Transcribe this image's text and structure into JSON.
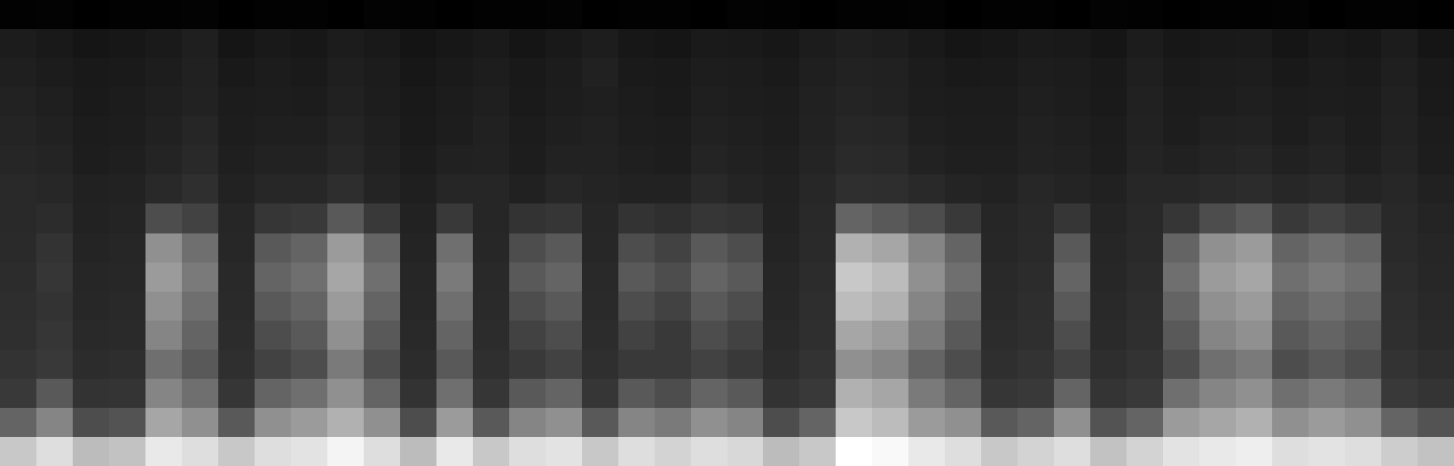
{
  "chart_data": {
    "type": "heatmap",
    "tick_labels": false,
    "z": [
      [
        6,
        7,
        5,
        6,
        6,
        7,
        5,
        6,
        6,
        5,
        7,
        6,
        5,
        6,
        6,
        7,
        5,
        6,
        6,
        5,
        7,
        6,
        5,
        6,
        6,
        7,
        5,
        6,
        6,
        5,
        7,
        6,
        5,
        6,
        6,
        7,
        5,
        6,
        6,
        5
      ],
      [
        22,
        20,
        18,
        19,
        21,
        24,
        18,
        20,
        19,
        22,
        20,
        17,
        19,
        21,
        18,
        20,
        23,
        19,
        18,
        21,
        20,
        19,
        22,
        24,
        23,
        20,
        18,
        19,
        21,
        20,
        18,
        22,
        19,
        20,
        21,
        18,
        20,
        19,
        22,
        18
      ],
      [
        24,
        22,
        20,
        21,
        23,
        25,
        20,
        22,
        21,
        24,
        22,
        19,
        21,
        23,
        20,
        22,
        25,
        21,
        20,
        23,
        22,
        21,
        24,
        26,
        25,
        22,
        20,
        21,
        23,
        22,
        20,
        24,
        21,
        22,
        23,
        20,
        22,
        21,
        24,
        20
      ],
      [
        26,
        24,
        21,
        22,
        24,
        26,
        22,
        23,
        22,
        25,
        23,
        20,
        22,
        24,
        21,
        23,
        24,
        22,
        21,
        24,
        23,
        22,
        25,
        27,
        26,
        23,
        22,
        22,
        24,
        23,
        21,
        25,
        22,
        23,
        24,
        22,
        23,
        22,
        25,
        21
      ],
      [
        27,
        25,
        22,
        23,
        25,
        28,
        23,
        24,
        24,
        27,
        24,
        21,
        23,
        25,
        22,
        24,
        25,
        23,
        22,
        25,
        24,
        23,
        26,
        29,
        28,
        24,
        23,
        23,
        25,
        24,
        22,
        26,
        23,
        25,
        26,
        23,
        25,
        23,
        26,
        22
      ],
      [
        28,
        27,
        23,
        24,
        27,
        30,
        24,
        26,
        26,
        29,
        25,
        22,
        25,
        26,
        23,
        26,
        26,
        24,
        23,
        27,
        25,
        24,
        27,
        31,
        30,
        26,
        24,
        24,
        26,
        25,
        23,
        27,
        25,
        27,
        28,
        25,
        27,
        24,
        27,
        23
      ],
      [
        30,
        29,
        25,
        26,
        30,
        34,
        26,
        29,
        29,
        33,
        27,
        24,
        28,
        28,
        25,
        29,
        27,
        26,
        26,
        30,
        27,
        25,
        29,
        34,
        33,
        30,
        27,
        26,
        29,
        27,
        25,
        29,
        29,
        31,
        32,
        29,
        31,
        27,
        29,
        25
      ],
      [
        30,
        32,
        26,
        27,
        44,
        42,
        28,
        38,
        40,
        46,
        40,
        26,
        40,
        28,
        36,
        38,
        28,
        36,
        34,
        38,
        36,
        26,
        30,
        48,
        46,
        44,
        40,
        28,
        30,
        38,
        27,
        30,
        38,
        44,
        46,
        40,
        42,
        40,
        30,
        27
      ],
      [
        31,
        36,
        27,
        28,
        56,
        50,
        29,
        46,
        48,
        58,
        48,
        27,
        50,
        29,
        44,
        46,
        29,
        44,
        42,
        46,
        44,
        27,
        31,
        62,
        60,
        54,
        48,
        29,
        31,
        46,
        28,
        31,
        48,
        56,
        58,
        48,
        50,
        48,
        31,
        28
      ],
      [
        32,
        38,
        28,
        29,
        58,
        52,
        30,
        48,
        50,
        60,
        50,
        28,
        52,
        30,
        46,
        48,
        30,
        46,
        44,
        48,
        46,
        28,
        32,
        66,
        64,
        56,
        50,
        30,
        32,
        48,
        29,
        32,
        50,
        58,
        60,
        50,
        52,
        50,
        32,
        29
      ],
      [
        33,
        36,
        29,
        30,
        56,
        50,
        31,
        46,
        48,
        58,
        48,
        29,
        50,
        31,
        44,
        46,
        31,
        44,
        42,
        46,
        44,
        29,
        33,
        64,
        62,
        54,
        48,
        31,
        33,
        46,
        30,
        33,
        48,
        56,
        58,
        48,
        50,
        48,
        33,
        30
      ],
      [
        34,
        38,
        30,
        31,
        54,
        48,
        32,
        44,
        46,
        56,
        46,
        30,
        48,
        32,
        42,
        44,
        32,
        42,
        40,
        44,
        42,
        30,
        34,
        60,
        58,
        52,
        46,
        32,
        34,
        44,
        31,
        34,
        46,
        54,
        56,
        46,
        48,
        46,
        34,
        31
      ],
      [
        36,
        40,
        32,
        33,
        50,
        46,
        34,
        42,
        44,
        52,
        44,
        32,
        46,
        34,
        40,
        42,
        34,
        40,
        40,
        42,
        40,
        32,
        36,
        56,
        54,
        48,
        44,
        34,
        36,
        42,
        33,
        36,
        44,
        50,
        52,
        44,
        46,
        44,
        36,
        33
      ],
      [
        40,
        46,
        36,
        37,
        54,
        50,
        38,
        48,
        50,
        56,
        48,
        36,
        50,
        38,
        46,
        48,
        38,
        46,
        44,
        48,
        46,
        36,
        40,
        62,
        60,
        52,
        48,
        38,
        40,
        48,
        37,
        40,
        50,
        54,
        56,
        50,
        52,
        50,
        40,
        37
      ],
      [
        48,
        54,
        44,
        45,
        60,
        56,
        46,
        56,
        58,
        62,
        56,
        44,
        58,
        46,
        54,
        56,
        46,
        54,
        52,
        56,
        54,
        44,
        48,
        66,
        64,
        58,
        56,
        46,
        48,
        56,
        45,
        48,
        58,
        60,
        62,
        56,
        58,
        56,
        48,
        45
      ],
      [
        66,
        70,
        64,
        65,
        72,
        70,
        66,
        70,
        71,
        74,
        70,
        64,
        72,
        66,
        70,
        71,
        66,
        70,
        68,
        70,
        69,
        64,
        66,
        76,
        75,
        72,
        70,
        66,
        68,
        70,
        65,
        68,
        71,
        72,
        73,
        70,
        71,
        70,
        67,
        65
      ]
    ]
  }
}
